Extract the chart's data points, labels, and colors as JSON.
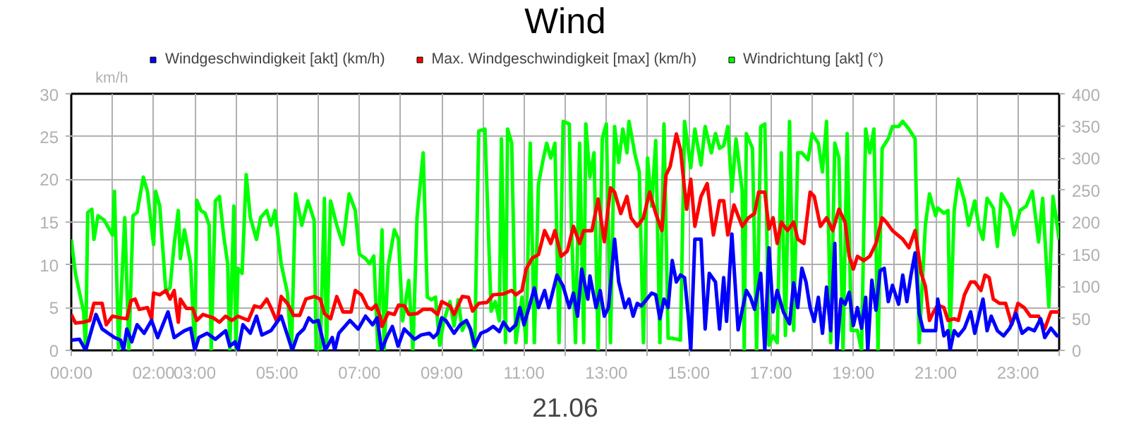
{
  "chart_data": {
    "type": "line",
    "title": "Wind",
    "ylabel": "km/h",
    "xlabel": "21.06",
    "legend": "top",
    "grid": true,
    "xlim": [
      0,
      24
    ],
    "xticks": [
      {
        "value": 0,
        "label": "00:00"
      },
      {
        "value": 1,
        "label": null
      },
      {
        "value": 2,
        "label": "02:00"
      },
      {
        "value": 3,
        "label": "03:00"
      },
      {
        "value": 4,
        "label": null
      },
      {
        "value": 5,
        "label": "05:00"
      },
      {
        "value": 6,
        "label": null
      },
      {
        "value": 7,
        "label": "07:00"
      },
      {
        "value": 8,
        "label": null
      },
      {
        "value": 9,
        "label": "09:00"
      },
      {
        "value": 10,
        "label": null
      },
      {
        "value": 11,
        "label": "11:00"
      },
      {
        "value": 12,
        "label": null
      },
      {
        "value": 13,
        "label": "13:00"
      },
      {
        "value": 14,
        "label": null
      },
      {
        "value": 15,
        "label": "15:00"
      },
      {
        "value": 16,
        "label": null
      },
      {
        "value": 17,
        "label": "17:00"
      },
      {
        "value": 18,
        "label": null
      },
      {
        "value": 19,
        "label": "19:00"
      },
      {
        "value": 20,
        "label": null
      },
      {
        "value": 21,
        "label": "21:00"
      },
      {
        "value": 22,
        "label": null
      },
      {
        "value": 23,
        "label": "23:00"
      },
      {
        "value": 24,
        "label": null
      }
    ],
    "ylim": [
      0,
      30
    ],
    "yticks": [
      0,
      5,
      10,
      15,
      20,
      25,
      30
    ],
    "y2lim": [
      0,
      400
    ],
    "y2ticks": [
      0,
      50,
      100,
      150,
      200,
      250,
      300,
      350,
      400
    ],
    "series": [
      {
        "name": "Windgeschwindigkeit [akt] (km/h)",
        "color": "#0000ff",
        "x": [
          0,
          0.2,
          0.35,
          0.6,
          0.75,
          0.9,
          1.05,
          1.2,
          1.27,
          1.35,
          1.47,
          1.6,
          1.77,
          1.95,
          2.1,
          2.35,
          2.5,
          2.75,
          2.9,
          3.0,
          3.1,
          3.3,
          3.5,
          3.75,
          3.85,
          3.98,
          4.05,
          4.17,
          4.35,
          4.5,
          4.63,
          4.85,
          5.1,
          5.27,
          5.37,
          5.5,
          5.65,
          5.77,
          5.88,
          6.0,
          6.17,
          6.34,
          6.4,
          6.5,
          6.77,
          6.97,
          7.15,
          7.32,
          7.43,
          7.54,
          7.66,
          7.8,
          7.94,
          8.09,
          8.34,
          8.5,
          8.7,
          8.8,
          8.9,
          9.0,
          9.1,
          9.3,
          9.45,
          9.6,
          9.7,
          9.8,
          9.95,
          10.1,
          10.25,
          10.4,
          10.5,
          10.65,
          10.8,
          10.9,
          11.0,
          11.15,
          11.25,
          11.35,
          11.5,
          11.6,
          11.8,
          11.95,
          12.1,
          12.2,
          12.3,
          12.4,
          12.55,
          12.6,
          12.75,
          12.85,
          12.95,
          13.05,
          13.2,
          13.3,
          13.45,
          13.55,
          13.65,
          13.75,
          13.85,
          13.95,
          14.1,
          14.2,
          14.3,
          14.4,
          14.5,
          14.6,
          14.7,
          14.8,
          14.9,
          15.0,
          15.05,
          15.15,
          15.3,
          15.4,
          15.5,
          15.65,
          15.75,
          15.85,
          15.92,
          16.05,
          16.2,
          16.4,
          16.5,
          16.6,
          16.75,
          16.85,
          16.95,
          17.05,
          17.15,
          17.3,
          17.45,
          17.55,
          17.65,
          17.75,
          17.85,
          17.95,
          18.05,
          18.15,
          18.25,
          18.35,
          18.45,
          18.55,
          18.6,
          18.7,
          18.8,
          18.9,
          19.0,
          19.1,
          19.2,
          19.3,
          19.35,
          19.45,
          19.55,
          19.65,
          19.75,
          19.85,
          19.95,
          20.1,
          20.2,
          20.3,
          20.4,
          20.5,
          20.6,
          20.7,
          20.85,
          21.0,
          21.05,
          21.2,
          21.3,
          21.35,
          21.45,
          21.55,
          21.7,
          21.85,
          21.95,
          22.05,
          22.15,
          22.25,
          22.35,
          22.5,
          22.65,
          22.8,
          22.95,
          23.1,
          23.25,
          23.4,
          23.55,
          23.65,
          23.8,
          23.95,
          24
        ],
        "values": [
          1.2,
          1.3,
          0,
          4.2,
          2.5,
          2,
          1.5,
          1.2,
          0,
          2.5,
          1,
          3,
          2,
          3.5,
          1.5,
          4.5,
          1.5,
          2.3,
          2.6,
          0,
          1.5,
          2,
          1.3,
          2.3,
          0.5,
          1,
          0,
          3,
          2,
          4,
          1.8,
          2.3,
          4,
          1.5,
          0,
          1.8,
          2.5,
          3.8,
          3.3,
          3.5,
          0,
          1.5,
          0,
          2,
          3.5,
          2.5,
          4,
          3,
          3.8,
          0,
          1.5,
          2.8,
          0.5,
          2.5,
          1.3,
          1.8,
          2,
          1.5,
          2,
          3.8,
          3.5,
          2,
          3,
          3.5,
          2.5,
          0.5,
          2,
          2.3,
          2.8,
          2.2,
          3.3,
          2.3,
          3,
          5,
          3,
          5.5,
          7.3,
          5,
          7,
          5,
          8.8,
          7.5,
          5,
          6.7,
          4,
          9.5,
          6,
          8.7,
          5,
          7,
          4,
          5,
          13,
          8,
          5,
          6,
          4,
          5.5,
          5.2,
          5.8,
          6.7,
          6.5,
          3.7,
          6,
          5,
          10.5,
          8,
          8.8,
          8.5,
          3.5,
          0,
          13,
          13,
          2.5,
          9,
          8,
          2.5,
          8.5,
          3.4,
          13.6,
          2.4,
          7,
          6.2,
          4.8,
          9,
          0,
          12,
          4.5,
          7,
          4.5,
          3.1,
          7.9,
          5,
          9.6,
          8,
          5,
          3.4,
          6.2,
          2,
          7.4,
          2.3,
          12.5,
          0,
          6,
          5.4,
          6.8,
          2.9,
          5,
          2.6,
          6.2,
          0,
          8.2,
          4.7,
          9.3,
          9.6,
          5.7,
          7.6,
          5.4,
          8.8,
          5.7,
          8.8,
          11.4,
          4.3,
          2.3,
          2.3,
          2.3,
          6,
          1.7,
          2.3,
          0,
          2.3,
          1.7,
          2.6,
          4.5,
          2,
          4,
          6,
          2.3,
          4,
          2.3,
          1.7,
          2.6,
          4.3,
          2,
          2.6,
          2.3,
          3.7,
          1.5,
          2.6,
          1.7,
          1.7
        ]
      },
      {
        "name": "Max. Windgeschwindigkeit [max] (km/h)",
        "color": "#ff0000",
        "x": [
          0,
          0.1,
          0.3,
          0.45,
          0.55,
          0.75,
          0.85,
          1.0,
          1.2,
          1.35,
          1.45,
          1.55,
          1.65,
          1.85,
          1.95,
          2.0,
          2.15,
          2.3,
          2.4,
          2.5,
          2.6,
          2.65,
          2.8,
          2.95,
          3.05,
          3.2,
          3.45,
          3.6,
          3.75,
          3.9,
          4.05,
          4.3,
          4.45,
          4.6,
          4.75,
          4.85,
          5.0,
          5.1,
          5.25,
          5.4,
          5.55,
          5.7,
          5.9,
          6.05,
          6.15,
          6.3,
          6.45,
          6.6,
          6.8,
          6.9,
          7.05,
          7.2,
          7.3,
          7.4,
          7.5,
          7.55,
          7.7,
          7.85,
          7.95,
          8.1,
          8.2,
          8.4,
          8.55,
          8.75,
          8.9,
          9.0,
          9.2,
          9.3,
          9.5,
          9.65,
          9.75,
          9.9,
          10.1,
          10.25,
          10.5,
          10.7,
          10.8,
          10.95,
          11.05,
          11.2,
          11.35,
          11.5,
          11.65,
          11.75,
          11.9,
          12.05,
          12.2,
          12.35,
          12.45,
          12.65,
          12.8,
          12.95,
          13.1,
          13.2,
          13.35,
          13.5,
          13.6,
          13.75,
          13.9,
          14.05,
          14.2,
          14.35,
          14.45,
          14.55,
          14.7,
          14.8,
          14.95,
          15.05,
          15.15,
          15.3,
          15.45,
          15.6,
          15.75,
          15.85,
          15.95,
          16.1,
          16.3,
          16.45,
          16.6,
          16.7,
          16.85,
          16.95,
          17.05,
          17.15,
          17.25,
          17.4,
          17.55,
          17.65,
          17.8,
          17.95,
          18.05,
          18.2,
          18.35,
          18.5,
          18.65,
          18.8,
          18.9,
          19.0,
          19.1,
          19.25,
          19.4,
          19.55,
          19.7,
          19.8,
          19.95,
          20.2,
          20.35,
          20.5,
          20.65,
          20.75,
          20.85,
          20.95,
          21.05,
          21.2,
          21.3,
          21.45,
          21.55,
          21.7,
          21.85,
          21.95,
          22.1,
          22.2,
          22.3,
          22.4,
          22.55,
          22.7,
          22.85,
          23.0,
          23.15,
          23.3,
          23.5,
          23.65,
          23.8,
          24
        ],
        "values": [
          4.2,
          3.2,
          3.3,
          3.5,
          5.5,
          5.5,
          3,
          4,
          3.8,
          3.7,
          5.8,
          6,
          4.8,
          5,
          3.7,
          6.7,
          6.5,
          7,
          6,
          7,
          3.3,
          6,
          4.9,
          4.9,
          3.5,
          4.2,
          3.8,
          3.3,
          4,
          3.5,
          4,
          3.5,
          5.2,
          5,
          6,
          5,
          3.3,
          6.3,
          5.5,
          4.1,
          4.1,
          6,
          6.3,
          6,
          4.3,
          3.7,
          6.3,
          4.5,
          4.5,
          7,
          6.5,
          5,
          4.8,
          5.3,
          4,
          2.8,
          4.4,
          4.2,
          5.3,
          5.2,
          4.2,
          4.3,
          4.8,
          4.8,
          4.2,
          5.7,
          5.2,
          4.2,
          6.3,
          6.2,
          4.6,
          5.5,
          5.6,
          6.5,
          6.6,
          7,
          6.5,
          7,
          9.5,
          10.8,
          11.2,
          14,
          12.5,
          14,
          11,
          11.6,
          14.5,
          12.5,
          14,
          14,
          17.7,
          12.7,
          19,
          18.5,
          16,
          18,
          15.5,
          14.5,
          15.5,
          18.5,
          16,
          14,
          20.5,
          21.5,
          25.3,
          23.5,
          16.5,
          20,
          14.5,
          18,
          19.5,
          13.5,
          17.5,
          17.5,
          13.5,
          17,
          14.5,
          15.5,
          16,
          18.5,
          18.5,
          14.2,
          15.5,
          12.5,
          15,
          14,
          15,
          13,
          12.5,
          18.5,
          18,
          14.5,
          15.5,
          14,
          16.5,
          15,
          11,
          9.5,
          11,
          10.5,
          11,
          12.5,
          15.5,
          15,
          14,
          13,
          12,
          14,
          9,
          7.5,
          3.5,
          4.5,
          5.3,
          5,
          3.5,
          3.7,
          3.5,
          6.5,
          8,
          8,
          7,
          8.8,
          8.5,
          6,
          5.5,
          5.5,
          3,
          5.5,
          5,
          4,
          4,
          2.5,
          4.5,
          4.5
        ]
      },
      {
        "name": "Windrichtung [akt] (°)",
        "color": "#00ff00",
        "axis": "y2",
        "x": [
          0,
          0.1,
          0.3,
          0.35,
          0.4,
          0.5,
          0.55,
          0.65,
          0.8,
          1.0,
          1.05,
          1.15,
          1.3,
          1.4,
          1.5,
          1.6,
          1.75,
          1.85,
          2.0,
          2.05,
          2.15,
          2.3,
          2.4,
          2.5,
          2.6,
          2.65,
          2.75,
          2.9,
          3.0,
          3.05,
          3.15,
          3.25,
          3.35,
          3.4,
          3.5,
          3.6,
          3.7,
          3.8,
          3.85,
          3.95,
          4.0,
          4.05,
          4.15,
          4.25,
          4.35,
          4.5,
          4.6,
          4.75,
          4.85,
          4.95,
          5.1,
          5.25,
          5.35,
          5.45,
          5.6,
          5.75,
          5.9,
          5.95,
          6.05,
          6.15,
          6.2,
          6.3,
          6.45,
          6.6,
          6.75,
          6.9,
          7.0,
          7.15,
          7.25,
          7.35,
          7.45,
          7.55,
          7.6,
          7.7,
          7.85,
          7.95,
          8.05,
          8.2,
          8.3,
          8.4,
          8.55,
          8.65,
          8.75,
          8.85,
          8.95,
          9.05,
          9.2,
          9.3,
          9.4,
          9.5,
          9.6,
          9.7,
          9.8,
          9.9,
          10.05,
          10.2,
          10.3,
          10.4,
          10.45,
          10.55,
          10.6,
          10.7,
          10.8,
          10.95,
          11.05,
          11.15,
          11.25,
          11.35,
          11.45,
          11.55,
          11.65,
          11.75,
          11.85,
          11.95,
          12.1,
          12.15,
          12.25,
          12.35,
          12.45,
          12.5,
          12.6,
          12.7,
          12.8,
          12.9,
          13.0,
          13.1,
          13.2,
          13.3,
          13.4,
          13.5,
          13.55,
          13.7,
          13.8,
          13.9,
          14.0,
          14.1,
          14.2,
          14.3,
          14.4,
          14.5,
          14.6,
          14.8,
          14.9,
          15.05,
          15.15,
          15.3,
          15.4,
          15.55,
          15.65,
          15.75,
          15.85,
          15.95,
          16.05,
          16.15,
          16.3,
          16.35,
          16.4,
          16.55,
          16.65,
          16.75,
          16.85,
          16.95,
          17.05,
          17.15,
          17.25,
          17.35,
          17.45,
          17.55,
          17.65,
          17.75,
          17.9,
          18.0,
          18.15,
          18.25,
          18.35,
          18.45,
          18.55,
          18.65,
          18.75,
          18.85,
          18.95,
          19.1,
          19.2,
          19.3,
          19.4,
          19.5,
          19.6,
          19.7,
          19.85,
          19.95,
          20.1,
          20.2,
          20.35,
          20.5,
          20.6,
          20.75,
          20.85,
          21.0,
          21.05,
          21.2,
          21.3,
          21.35,
          21.45,
          21.55,
          21.7,
          21.8,
          21.95,
          22.05,
          22.15,
          22.25,
          22.4,
          22.5,
          22.6,
          22.8,
          22.9,
          23.05,
          23.2,
          23.35,
          23.5,
          23.6,
          23.75,
          23.85,
          24
        ],
        "values": [
          173,
          120,
          60,
          0,
          215,
          220,
          173,
          210,
          203,
          180,
          248,
          0,
          207,
          0,
          210,
          215,
          270,
          248,
          165,
          248,
          225,
          90,
          98,
          165,
          218,
          143,
          188,
          135,
          0,
          234,
          218,
          214,
          195,
          0,
          233,
          240,
          180,
          135,
          0,
          225,
          0,
          128,
          120,
          274,
          207,
          173,
          207,
          218,
          195,
          218,
          135,
          90,
          0,
          244,
          195,
          233,
          203,
          0,
          0,
          237,
          0,
          233,
          195,
          165,
          244,
          218,
          150,
          143,
          135,
          147,
          0,
          188,
          0,
          132,
          188,
          173,
          46,
          109,
          0,
          207,
          308,
          83,
          79,
          83,
          8,
          46,
          76,
          38,
          79,
          31,
          46,
          31,
          0,
          342,
          345,
          61,
          76,
          46,
          330,
          12,
          345,
          323,
          12,
          83,
          12,
          323,
          12,
          259,
          293,
          323,
          300,
          323,
          12,
          357,
          353,
          195,
          12,
          323,
          12,
          353,
          270,
          308,
          0,
          330,
          353,
          12,
          349,
          293,
          345,
          308,
          357,
          304,
          278,
          12,
          300,
          225,
          327,
          12,
          353,
          19,
          19,
          16,
          357,
          285,
          345,
          289,
          349,
          308,
          338,
          315,
          319,
          349,
          248,
          330,
          248,
          0,
          338,
          315,
          0,
          349,
          353,
          8,
          23,
          12,
          308,
          23,
          357,
          31,
          308,
          308,
          297,
          338,
          323,
          278,
          357,
          12,
          323,
          300,
          0,
          338,
          31,
          31,
          0,
          345,
          308,
          345,
          0,
          315,
          330,
          349,
          349,
          357,
          345,
          330,
          12,
          195,
          244,
          210,
          222,
          214,
          218,
          23,
          218,
          267,
          233,
          195,
          233,
          192,
          173,
          237,
          222,
          162,
          244,
          222,
          180,
          218,
          225,
          248,
          169,
          237,
          68,
          240,
          173
        ]
      }
    ]
  }
}
